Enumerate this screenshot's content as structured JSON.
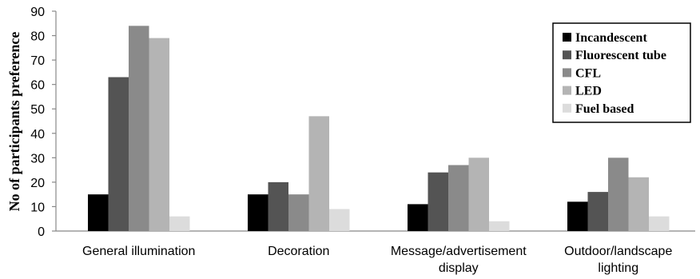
{
  "chart_data": {
    "type": "bar",
    "title": "",
    "xlabel": "",
    "ylabel": "No of participants preference",
    "ylim": [
      0,
      90
    ],
    "yticks": [
      "0",
      "10",
      "20",
      "30",
      "40",
      "50",
      "60",
      "70",
      "80",
      "90"
    ],
    "grid": false,
    "legend_position": "top-right",
    "categories": [
      [
        "General illumination"
      ],
      [
        "Decoration"
      ],
      [
        "Message/advertisement",
        "display"
      ],
      [
        "Outdoor/landscape",
        "lighting"
      ]
    ],
    "series": [
      {
        "name": "Incandescent",
        "color": "#000000",
        "values": [
          15,
          15,
          11,
          12
        ]
      },
      {
        "name": "Fluorescent tube",
        "color": "#545454",
        "values": [
          63,
          20,
          24,
          16
        ]
      },
      {
        "name": "CFL",
        "color": "#8a8a8a",
        "values": [
          84,
          15,
          27,
          30
        ]
      },
      {
        "name": "LED",
        "color": "#b4b4b4",
        "values": [
          79,
          47,
          30,
          22
        ]
      },
      {
        "name": "Fuel based",
        "color": "#dcdcdc",
        "values": [
          6,
          9,
          4,
          6
        ]
      }
    ]
  }
}
